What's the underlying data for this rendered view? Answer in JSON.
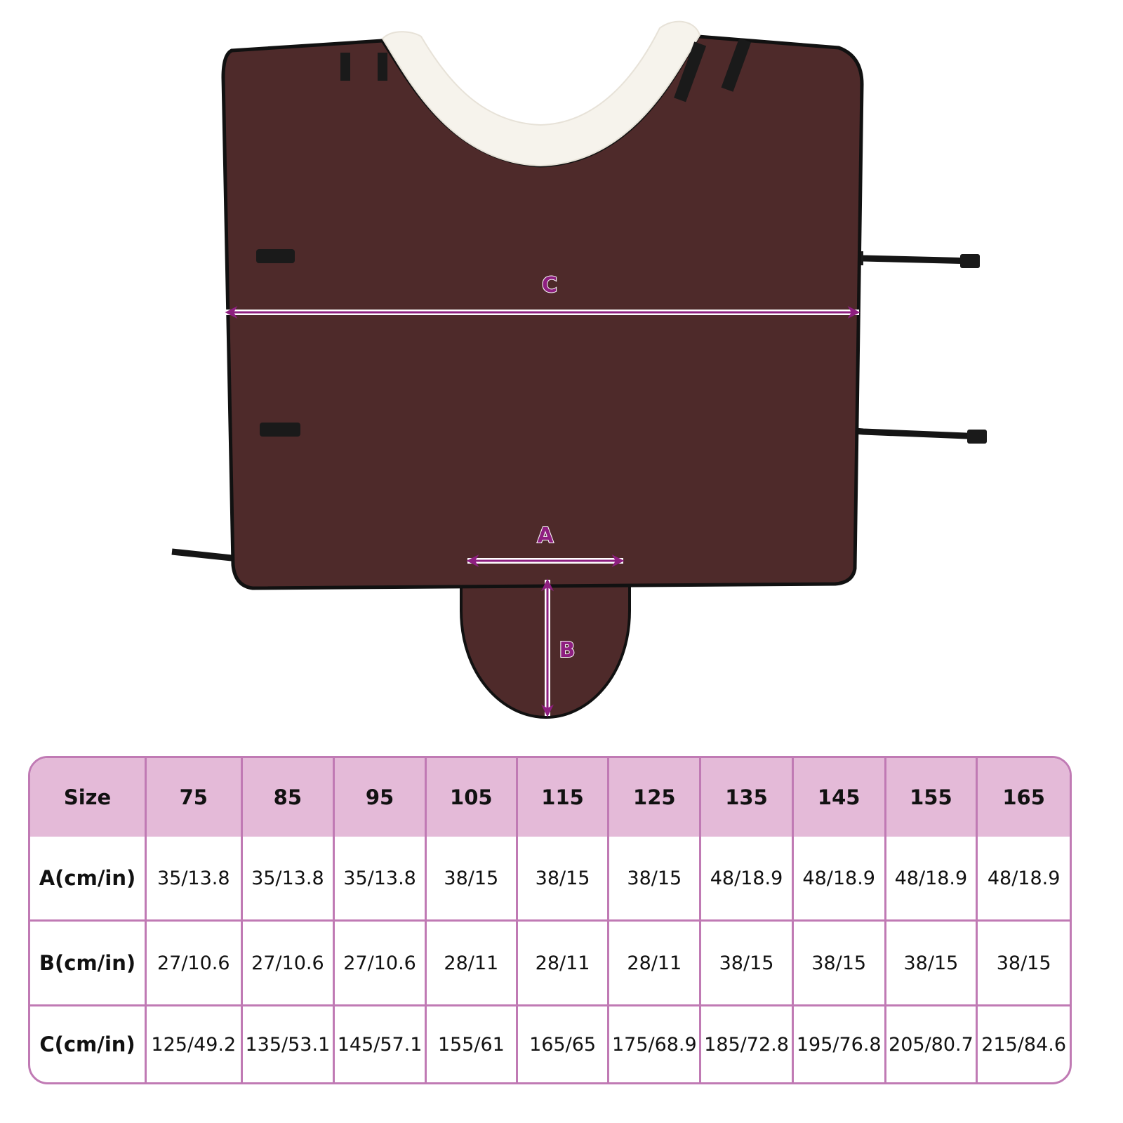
{
  "colors": {
    "accent": "#8e1f80",
    "blanket": "#4e2a2a",
    "trim": "#111111",
    "fur": "#f6f3ec",
    "table_border": "#c07ab4",
    "table_header": "#e4bad8"
  },
  "diagram": {
    "label_a": "A",
    "label_b": "B",
    "label_c": "C"
  },
  "table": {
    "header": [
      "Size",
      "75",
      "85",
      "95",
      "105",
      "115",
      "125",
      "135",
      "145",
      "155",
      "165"
    ],
    "rows": [
      [
        "A(cm/in)",
        "35/13.8",
        "35/13.8",
        "35/13.8",
        "38/15",
        "38/15",
        "38/15",
        "48/18.9",
        "48/18.9",
        "48/18.9",
        "48/18.9"
      ],
      [
        "B(cm/in)",
        "27/10.6",
        "27/10.6",
        "27/10.6",
        "28/11",
        "28/11",
        "28/11",
        "38/15",
        "38/15",
        "38/15",
        "38/15"
      ],
      [
        "C(cm/in)",
        "125/49.2",
        "135/53.1",
        "145/57.1",
        "155/61",
        "165/65",
        "175/68.9",
        "185/72.8",
        "195/76.8",
        "205/80.7",
        "215/84.6"
      ]
    ]
  }
}
